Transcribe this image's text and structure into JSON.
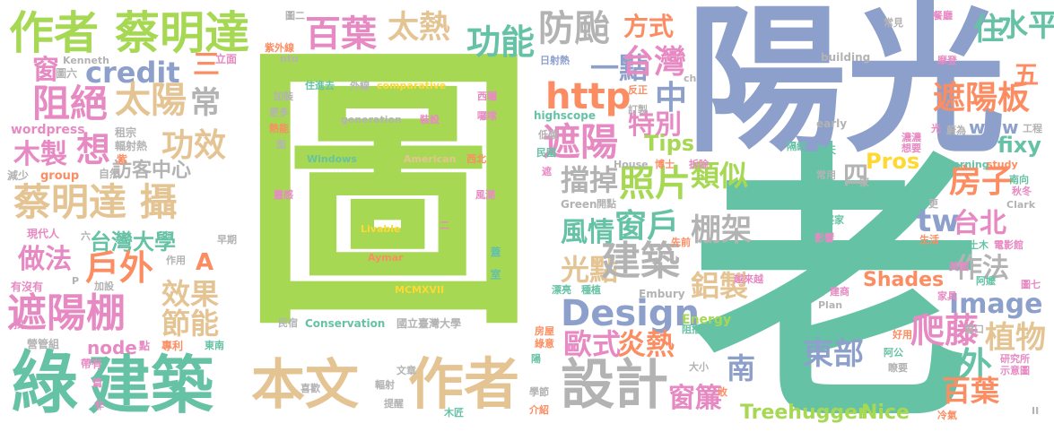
{
  "colors": {
    "green": "#a6d854",
    "teal": "#66c2a5",
    "orange": "#fc8d62",
    "blue": "#8da0cb",
    "pink": "#e78ac3",
    "yellow": "#ffd92f",
    "tan": "#e5c494",
    "gray": "#b3b3b3"
  },
  "words": [
    {
      "text": "圖",
      "color": "green"
    },
    {
      "text": "老",
      "color": "teal"
    },
    {
      "text": "陽光",
      "color": "blue"
    },
    {
      "text": "作者",
      "color": "green"
    },
    {
      "text": "蔡明達",
      "color": "green"
    },
    {
      "text": "百葉",
      "color": "pink"
    },
    {
      "text": "太熱",
      "color": "tan"
    },
    {
      "text": "功能",
      "color": "teal"
    },
    {
      "text": "防颱",
      "color": "gray"
    },
    {
      "text": "方式",
      "color": "orange"
    },
    {
      "text": "住",
      "color": "teal"
    },
    {
      "text": "水平",
      "color": "teal"
    },
    {
      "text": "credit",
      "color": "blue"
    },
    {
      "text": "三",
      "color": "orange"
    },
    {
      "text": "一點",
      "color": "blue"
    },
    {
      "text": "台灣",
      "color": "pink"
    },
    {
      "text": "窗",
      "color": "pink"
    },
    {
      "text": "阻絕",
      "color": "pink"
    },
    {
      "text": "太陽",
      "color": "tan"
    },
    {
      "text": "常",
      "color": "gray"
    },
    {
      "text": "http",
      "color": "orange"
    },
    {
      "text": "中",
      "color": "blue"
    },
    {
      "text": "遮陽板",
      "color": "orange"
    },
    {
      "text": "五",
      "color": "orange"
    },
    {
      "text": "特別",
      "color": "pink"
    },
    {
      "text": "功效",
      "color": "tan"
    },
    {
      "text": "想",
      "color": "pink"
    },
    {
      "text": "木製",
      "color": "pink"
    },
    {
      "text": "遮陽",
      "color": "pink"
    },
    {
      "text": "訪客中心",
      "color": "gray"
    },
    {
      "text": "Tips",
      "color": "green"
    },
    {
      "text": "Pros",
      "color": "yellow"
    },
    {
      "text": "四",
      "color": "gray"
    },
    {
      "text": "fixy",
      "color": "teal"
    },
    {
      "text": "擋掉",
      "color": "gray"
    },
    {
      "text": "照片",
      "color": "green"
    },
    {
      "text": "類似",
      "color": "green"
    },
    {
      "text": "房子",
      "color": "orange"
    },
    {
      "text": "蔡明達 攝",
      "color": "tan"
    },
    {
      "text": "tw",
      "color": "blue"
    },
    {
      "text": "台北",
      "color": "pink"
    },
    {
      "text": "台灣大學",
      "color": "teal"
    },
    {
      "text": "戶外",
      "color": "orange"
    },
    {
      "text": "風情",
      "color": "teal"
    },
    {
      "text": "窗戶",
      "color": "teal"
    },
    {
      "text": "棚架",
      "color": "gray"
    },
    {
      "text": "做法",
      "color": "pink"
    },
    {
      "text": "A",
      "color": "orange"
    },
    {
      "text": "光點",
      "color": "tan"
    },
    {
      "text": "建築",
      "color": "gray"
    },
    {
      "text": "鋁製",
      "color": "tan"
    },
    {
      "text": "作法",
      "color": "gray"
    },
    {
      "text": "Image",
      "color": "blue"
    },
    {
      "text": "效果",
      "color": "tan"
    },
    {
      "text": "遮陽棚",
      "color": "pink"
    },
    {
      "text": "節能",
      "color": "tan"
    },
    {
      "text": "Design",
      "color": "blue"
    },
    {
      "text": "爬藤",
      "color": "pink"
    },
    {
      "text": "植物",
      "color": "tan"
    },
    {
      "text": "外",
      "color": "teal"
    },
    {
      "text": "歐式",
      "color": "pink"
    },
    {
      "text": "炎熱",
      "color": "orange"
    },
    {
      "text": "東部",
      "color": "blue"
    },
    {
      "text": "南",
      "color": "blue"
    },
    {
      "text": "node",
      "color": "pink"
    },
    {
      "text": "綠",
      "color": "teal"
    },
    {
      "text": "建築",
      "color": "teal"
    },
    {
      "text": "本文",
      "color": "tan"
    },
    {
      "text": "作者",
      "color": "tan"
    },
    {
      "text": "設計",
      "color": "gray"
    },
    {
      "text": "窗簾",
      "color": "pink"
    },
    {
      "text": "百葉",
      "color": "orange"
    },
    {
      "text": "Treehugger",
      "color": "green"
    },
    {
      "text": "Nice",
      "color": "green"
    },
    {
      "text": "Shades",
      "color": "orange"
    },
    {
      "text": "www",
      "color": "blue"
    },
    {
      "text": "Energy",
      "color": "green"
    },
    {
      "text": "圖二",
      "color": "gray"
    },
    {
      "text": "紫外線",
      "color": "orange"
    },
    {
      "text": "立面",
      "color": "pink"
    },
    {
      "text": "圖六",
      "color": "gray"
    },
    {
      "text": "Kenneth",
      "color": "gray"
    },
    {
      "text": "wordpress",
      "color": "pink"
    },
    {
      "text": "租宗",
      "color": "gray"
    },
    {
      "text": "輻射熱",
      "color": "gray"
    },
    {
      "text": "紫",
      "color": "orange"
    },
    {
      "text": "自然",
      "color": "gray"
    },
    {
      "text": "減少",
      "color": "gray"
    },
    {
      "text": "group",
      "color": "orange"
    },
    {
      "text": "現代人",
      "color": "pink"
    },
    {
      "text": "六",
      "color": "gray"
    },
    {
      "text": "早期",
      "color": "gray"
    },
    {
      "text": "作用",
      "color": "gray"
    },
    {
      "text": "加設",
      "color": "gray"
    },
    {
      "text": "有沒有",
      "color": "pink"
    },
    {
      "text": "P",
      "color": "gray"
    },
    {
      "text": "找",
      "color": "pink"
    },
    {
      "text": "營管組",
      "color": "gray"
    },
    {
      "text": "點",
      "color": "pink"
    },
    {
      "text": "專利",
      "color": "orange"
    },
    {
      "text": "東南",
      "color": "teal"
    },
    {
      "text": "帶有",
      "color": "pink"
    },
    {
      "text": "篇",
      "color": "pink"
    },
    {
      "text": "非",
      "color": "pink"
    },
    {
      "text": "ntu",
      "color": "gray"
    },
    {
      "text": "文章",
      "color": "gray"
    },
    {
      "text": "喜歡",
      "color": "gray"
    },
    {
      "text": "輻射",
      "color": "gray"
    },
    {
      "text": "提醒",
      "color": "gray"
    },
    {
      "text": "木匠",
      "color": "teal"
    },
    {
      "text": "學節",
      "color": "gray"
    },
    {
      "text": "介紹",
      "color": "orange"
    },
    {
      "text": "蓋",
      "color": "teal"
    },
    {
      "text": "室",
      "color": "teal"
    },
    {
      "text": "陽",
      "color": "teal"
    },
    {
      "text": "綠意",
      "color": "orange"
    },
    {
      "text": "房屋",
      "color": "orange"
    },
    {
      "text": "漂亮",
      "color": "teal"
    },
    {
      "text": "種植",
      "color": "teal"
    },
    {
      "text": "Green",
      "color": "gray"
    },
    {
      "text": "開點",
      "color": "gray"
    },
    {
      "text": "先前",
      "color": "orange"
    },
    {
      "text": "Embury",
      "color": "gray"
    },
    {
      "text": "越來越",
      "color": "pink"
    },
    {
      "text": "阻擋",
      "color": "teal"
    },
    {
      "text": "大小",
      "color": "gray"
    },
    {
      "text": "收",
      "color": "orange"
    },
    {
      "text": "日射熱",
      "color": "blue"
    },
    {
      "text": "反正",
      "color": "orange"
    },
    {
      "text": "ch",
      "color": "gray"
    },
    {
      "text": "訂製",
      "color": "gray"
    },
    {
      "text": "highscope",
      "color": "teal"
    },
    {
      "text": "低碳",
      "color": "gray"
    },
    {
      "text": "民國",
      "color": "teal"
    },
    {
      "text": "遮",
      "color": "pink"
    },
    {
      "text": "House",
      "color": "gray"
    },
    {
      "text": "博士",
      "color": "orange"
    },
    {
      "text": "拆除",
      "color": "pink"
    },
    {
      "text": "常見",
      "color": "gray"
    },
    {
      "text": "餐廳",
      "color": "pink"
    },
    {
      "text": "building",
      "color": "gray"
    },
    {
      "text": "摩登",
      "color": "pink"
    },
    {
      "text": "early",
      "color": "gray"
    },
    {
      "text": "隔絕",
      "color": "teal"
    },
    {
      "text": "夏天",
      "color": "teal"
    },
    {
      "text": "常用",
      "color": "gray"
    },
    {
      "text": "解決",
      "color": "teal"
    },
    {
      "text": "家",
      "color": "gray"
    },
    {
      "text": "蔚為",
      "color": "gray"
    },
    {
      "text": "光",
      "color": "pink"
    },
    {
      "text": "濃濃",
      "color": "pink"
    },
    {
      "text": "想要",
      "color": "pink"
    },
    {
      "text": "工程",
      "color": "gray"
    },
    {
      "text": "Learning",
      "color": "teal"
    },
    {
      "text": "study",
      "color": "orange"
    },
    {
      "text": "南向",
      "color": "teal"
    },
    {
      "text": "秋冬",
      "color": "pink"
    },
    {
      "text": "Clark",
      "color": "gray"
    },
    {
      "text": "更",
      "color": "gray"
    },
    {
      "text": "外婆家",
      "color": "teal"
    },
    {
      "text": "影響",
      "color": "pink"
    },
    {
      "text": "生活",
      "color": "orange"
    },
    {
      "text": "土木",
      "color": "teal"
    },
    {
      "text": "電影館",
      "color": "pink"
    },
    {
      "text": "美國",
      "color": "pink"
    },
    {
      "text": "阿嬤",
      "color": "teal"
    },
    {
      "text": "圖七",
      "color": "pink"
    },
    {
      "text": "建商",
      "color": "pink"
    },
    {
      "text": "家具",
      "color": "pink"
    },
    {
      "text": "Plan",
      "color": "gray"
    },
    {
      "text": "窗口",
      "color": "gray"
    },
    {
      "text": "好用",
      "color": "orange"
    },
    {
      "text": "阿公",
      "color": "teal"
    },
    {
      "text": "研究所",
      "color": "pink"
    },
    {
      "text": "示意圖",
      "color": "pink"
    },
    {
      "text": "瞭要",
      "color": "gray"
    },
    {
      "text": "冷氣",
      "color": "orange"
    },
    {
      "text": "II",
      "color": "gray"
    },
    {
      "text": "加裝",
      "color": "gray"
    },
    {
      "text": "更多",
      "color": "gray"
    },
    {
      "text": "熱能",
      "color": "orange"
    },
    {
      "text": "面",
      "color": "gray"
    },
    {
      "text": "住進去",
      "color": "teal"
    },
    {
      "text": "外線",
      "color": "gray"
    },
    {
      "text": "comparative",
      "color": "yellow"
    },
    {
      "text": "generation",
      "color": "gray"
    },
    {
      "text": "裝設",
      "color": "pink"
    },
    {
      "text": "西曬",
      "color": "pink"
    },
    {
      "text": "囉嗦",
      "color": "pink"
    },
    {
      "text": "Windows",
      "color": "teal"
    },
    {
      "text": "American",
      "color": "tan"
    },
    {
      "text": "西北",
      "color": "orange"
    },
    {
      "text": "靈感",
      "color": "pink"
    },
    {
      "text": "風潮",
      "color": "pink"
    },
    {
      "text": "Livable",
      "color": "yellow"
    },
    {
      "text": "二",
      "color": "pink"
    },
    {
      "text": "Aymar",
      "color": "orange"
    },
    {
      "text": "MCMXVII",
      "color": "yellow"
    },
    {
      "text": "民宿",
      "color": "gray"
    },
    {
      "text": "Conservation",
      "color": "teal"
    },
    {
      "text": "國立臺灣大學",
      "color": "gray"
    }
  ]
}
